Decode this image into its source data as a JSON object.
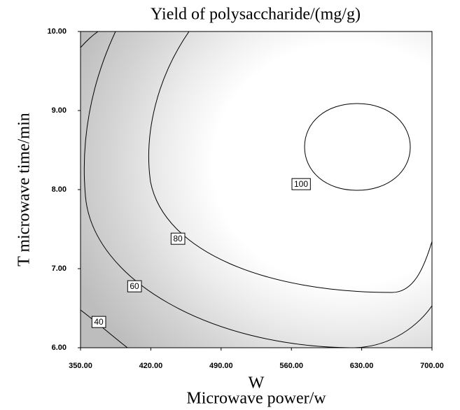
{
  "chart_data": {
    "type": "contour",
    "title": "Yield of polysaccharide/(mg/g)",
    "x_label": [
      "W",
      "Microwave power/w"
    ],
    "y_label": "T microwave time/min",
    "xlim": [
      350,
      700
    ],
    "xticks": [
      {
        "value": 350,
        "label": "350.00"
      },
      {
        "value": 420,
        "label": "420.00"
      },
      {
        "value": 490,
        "label": "490.00"
      },
      {
        "value": 560,
        "label": "560.00"
      },
      {
        "value": 630,
        "label": "630.00"
      },
      {
        "value": 700,
        "label": "700.00"
      }
    ],
    "ylim": [
      6,
      10
    ],
    "yticks": [
      {
        "value": 6,
        "label": "6.00"
      },
      {
        "value": 7,
        "label": "7.00"
      },
      {
        "value": 8,
        "label": "8.00"
      },
      {
        "value": 9,
        "label": "9.00"
      },
      {
        "value": 10,
        "label": "10.00"
      }
    ],
    "levels": [
      40,
      60,
      80,
      100
    ]
  }
}
